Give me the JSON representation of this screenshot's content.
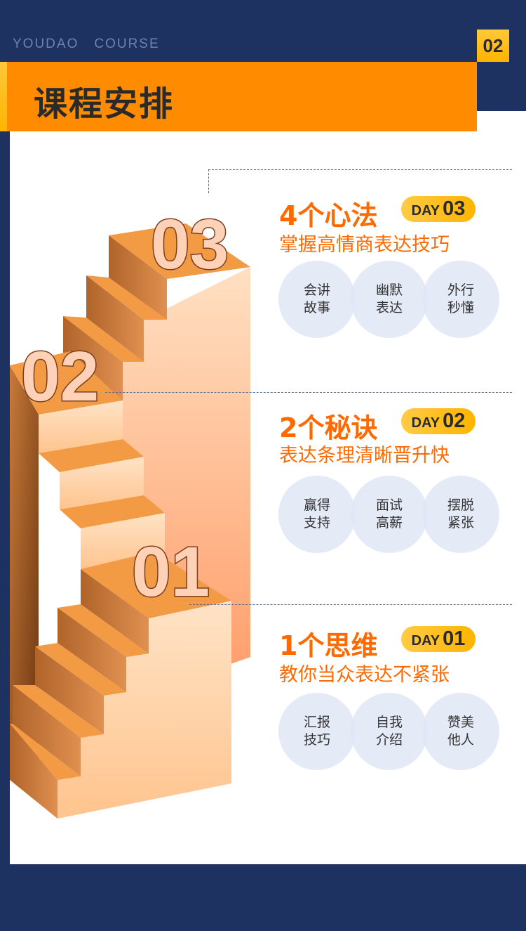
{
  "brand": {
    "left": "YOUDAO",
    "right": "COURSE"
  },
  "page_number": "02",
  "title": "课程安排",
  "sections": [
    {
      "step": "03",
      "headline": "4个心法",
      "day_label": "DAY",
      "day_num": "03",
      "subtitle": "掌握高情商表达技巧",
      "topics": [
        "会讲\n故事",
        "幽默\n表达",
        "外行\n秒懂"
      ]
    },
    {
      "step": "02",
      "headline": "2个秘诀",
      "day_label": "DAY",
      "day_num": "02",
      "subtitle": "表达条理清晰晋升快",
      "topics": [
        "赢得\n支持",
        "面试\n高薪",
        "摆脱\n紧张"
      ]
    },
    {
      "step": "01",
      "headline": "1个思维",
      "day_label": "DAY",
      "day_num": "01",
      "subtitle": "教你当众表达不紧张",
      "topics": [
        "汇报\n技巧",
        "自我\n介绍",
        "赞美\n他人"
      ]
    }
  ],
  "colors": {
    "navy": "#1e3262",
    "orange": "#ff8c00",
    "accent": "#ff6a00",
    "yellow": "#ffb400"
  }
}
